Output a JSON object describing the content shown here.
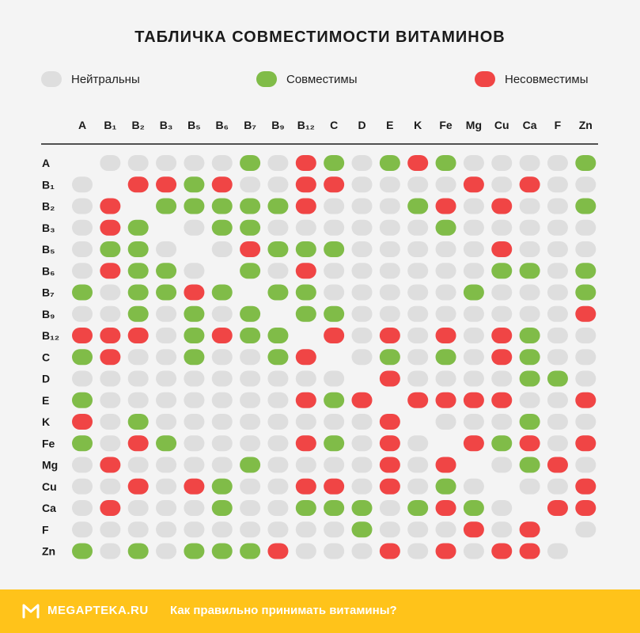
{
  "title": "ТАБЛИЧКА СОВМЕСТИМОСТИ ВИТАМИНОВ",
  "legend": [
    {
      "key": "N",
      "label": "Нейтральны",
      "color": "#dedede"
    },
    {
      "key": "G",
      "label": "Совместимы",
      "color": "#80bc48"
    },
    {
      "key": "R",
      "label": "Несовместимы",
      "color": "#f04545"
    }
  ],
  "colors": {
    "N": "#dedede",
    "G": "#80bc48",
    "R": "#f04545",
    "footer": "#ffc31a",
    "line": "#1a1a1a"
  },
  "chart_data": {
    "type": "heatmap",
    "categories": [
      "A",
      "B₁",
      "B₂",
      "B₃",
      "B₅",
      "B₆",
      "B₇",
      "B₉",
      "B₁₂",
      "C",
      "D",
      "E",
      "K",
      "Fe",
      "Mg",
      "Cu",
      "Ca",
      "F",
      "Zn"
    ],
    "rows": [
      "A",
      "B₁",
      "B₂",
      "B₃",
      "B₅",
      "B₆",
      "B₇",
      "B₉",
      "B₁₂",
      "C",
      "D",
      "E",
      "K",
      "Fe",
      "Mg",
      "Cu",
      "Ca",
      "F",
      "Zn"
    ],
    "matrix": [
      "-NNNNNGNRGNGRGNNNNG",
      "N-RRGRNNRRNNNNRNRNN",
      "NR-GGGGGRNNNGRNRNNG",
      "NRG-NGGNNNNNNGNNNNN",
      "NGGN-NRGGGNNNNNRNNN",
      "NRGGN-GNRNNNNNNGGNG",
      "GNGGRG-GGNNNNNGNNNG",
      "NNGNGNG-GGNNNNNNNNR",
      "RRRNGRGG-RNRNRNRGNN",
      "GRNNGNNGR-NGNGNRGNN",
      "NNNNNNNNNN-RNNNNGGN",
      "GNNNNNNNRGR-RRRRNNR",
      "RNGNNNNNNNNR-NNNGNN",
      "GNRGNNNNRGNRN-RGRNR",
      "NRNNNNGNNNNRNR-NGRN",
      "NNRNRGNNRRNRNGN-NNR",
      "NRNNNGNNGGGNGRGN-RR",
      "NNNNNNNNNNGNNNRNR-N",
      "GNGNGGGRNNNRNRNRRN-"
    ],
    "legend_placement": "top"
  },
  "footer": {
    "brand": "MEGAPTEKA.RU",
    "link": "Как правильно принимать витамины?"
  }
}
